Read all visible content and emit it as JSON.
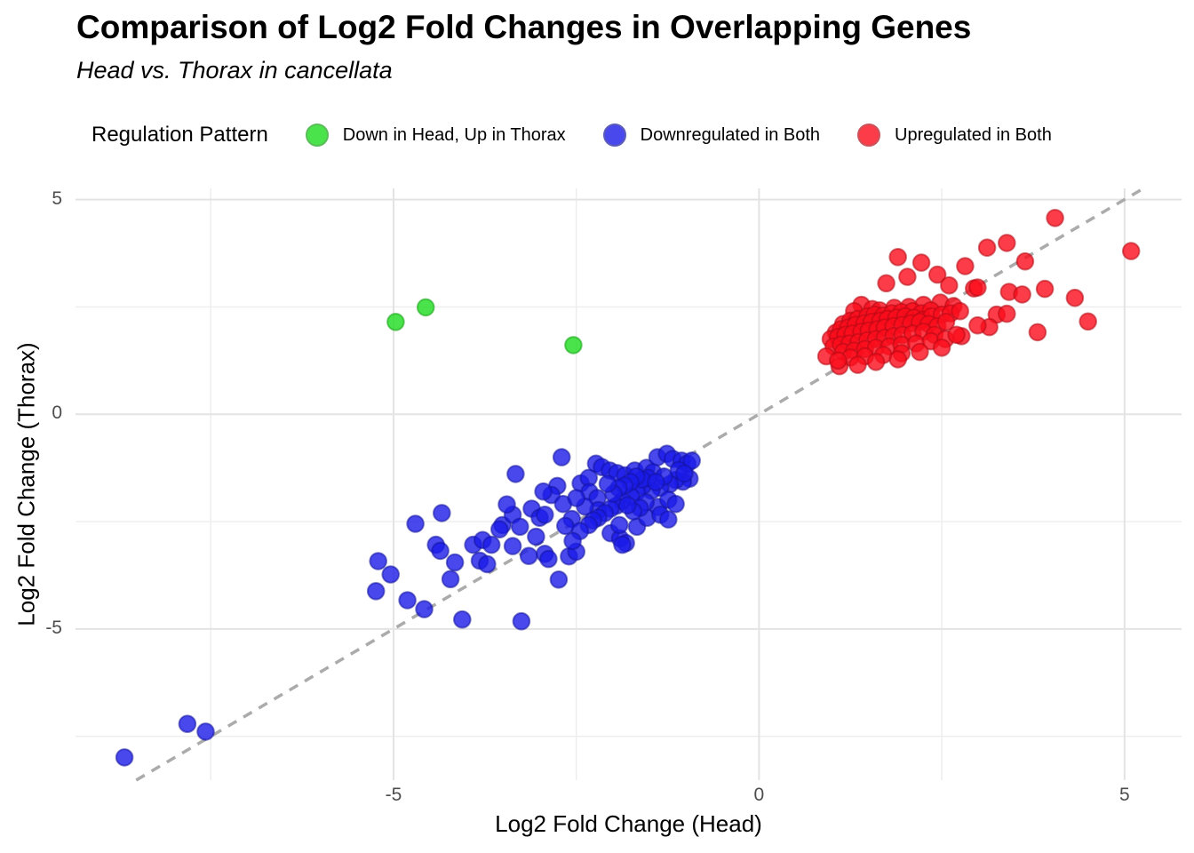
{
  "chart_data": {
    "type": "scatter",
    "title": "Comparison of Log2 Fold Changes in Overlapping Genes",
    "subtitle": "Head vs. Thorax in cancellata",
    "xlabel": "Log2 Fold Change (Head)",
    "ylabel": "Log2 Fold Change (Thorax)",
    "xlim": [
      -9.35,
      5.78
    ],
    "ylim": [
      -8.52,
      5.26
    ],
    "x_ticks": {
      "major": [
        -5,
        0,
        5
      ],
      "labels": [
        "-5",
        "0",
        "5"
      ],
      "minor": [
        -7.5,
        -2.5,
        2.5
      ]
    },
    "y_ticks": {
      "major": [
        -5,
        0,
        5
      ],
      "labels": [
        "-5",
        "0",
        "5"
      ],
      "minor": [
        -7.5,
        -2.5,
        2.5
      ]
    },
    "grid": true,
    "legend_title": "Regulation Pattern",
    "legend_position": "top",
    "reference_line": {
      "type": "abline",
      "slope": 1,
      "intercept": 0,
      "style": "dashed",
      "color": "#ABABAB",
      "width": 3.5
    },
    "series": [
      {
        "name": "Down in Head, Up in Thorax",
        "color": "#1EDC1E",
        "stroke": "#13A013",
        "points": [
          [
            -4.97,
            2.15
          ],
          [
            -4.56,
            2.49
          ],
          [
            -2.54,
            1.61
          ]
        ]
      },
      {
        "name": "Downregulated in Both",
        "color": "#1A1AE8",
        "stroke": "#14149C",
        "points": [
          [
            -8.68,
            -7.99
          ],
          [
            -7.82,
            -7.21
          ],
          [
            -7.57,
            -7.39
          ],
          [
            -5.21,
            -3.42
          ],
          [
            -5.04,
            -3.73
          ],
          [
            -5.24,
            -4.12
          ],
          [
            -4.81,
            -4.33
          ],
          [
            -4.58,
            -4.54
          ],
          [
            -4.7,
            -2.55
          ],
          [
            -4.34,
            -2.3
          ],
          [
            -4.42,
            -3.04
          ],
          [
            -4.36,
            -3.18
          ],
          [
            -4.16,
            -3.45
          ],
          [
            -4.22,
            -3.84
          ],
          [
            -4.06,
            -4.78
          ],
          [
            -3.91,
            -3.04
          ],
          [
            -3.78,
            -2.93
          ],
          [
            -3.66,
            -3.04
          ],
          [
            -3.82,
            -3.41
          ],
          [
            -3.72,
            -3.49
          ],
          [
            -3.51,
            -2.58
          ],
          [
            -3.55,
            -2.68
          ],
          [
            -3.33,
            -1.39
          ],
          [
            -3.37,
            -2.34
          ],
          [
            -3.27,
            -2.62
          ],
          [
            -3.37,
            -3.07
          ],
          [
            -3.25,
            -4.82
          ],
          [
            -3.11,
            -2.2
          ],
          [
            -3.0,
            -2.41
          ],
          [
            -2.93,
            -2.34
          ],
          [
            -2.7,
            -1.0
          ],
          [
            -2.76,
            -1.67
          ],
          [
            -2.84,
            -1.88
          ],
          [
            -2.68,
            -2.09
          ],
          [
            -2.56,
            -2.44
          ],
          [
            -2.44,
            -1.61
          ],
          [
            -2.33,
            -1.48
          ],
          [
            -2.32,
            -1.81
          ],
          [
            -2.21,
            -1.95
          ],
          [
            -2.2,
            -2.23
          ],
          [
            -2.93,
            -3.25
          ],
          [
            -2.88,
            -3.37
          ],
          [
            -2.74,
            -3.85
          ],
          [
            -2.6,
            -3.31
          ],
          [
            -2.5,
            -3.2
          ],
          [
            -3.05,
            -2.85
          ],
          [
            -3.15,
            -3.3
          ],
          [
            -2.95,
            -1.8
          ],
          [
            -3.45,
            -2.1
          ],
          [
            -2.23,
            -1.15
          ],
          [
            -2.15,
            -1.23
          ],
          [
            -2.04,
            -1.31
          ],
          [
            -1.94,
            -1.37
          ],
          [
            -1.83,
            -1.42
          ],
          [
            -1.7,
            -1.31
          ],
          [
            -1.54,
            -1.25
          ],
          [
            -1.39,
            -1.0
          ],
          [
            -1.26,
            -0.92
          ],
          [
            -1.18,
            -1.04
          ],
          [
            -1.06,
            -1.08
          ],
          [
            -0.98,
            -1.15
          ],
          [
            -0.92,
            -1.08
          ],
          [
            -0.95,
            -1.5
          ],
          [
            -1.04,
            -1.57
          ],
          [
            -1.14,
            -1.53
          ],
          [
            -1.22,
            -1.63
          ],
          [
            -1.35,
            -1.71
          ],
          [
            -1.47,
            -1.78
          ],
          [
            -1.59,
            -1.67
          ],
          [
            -1.67,
            -1.81
          ],
          [
            -1.75,
            -1.92
          ],
          [
            -1.87,
            -2.02
          ],
          [
            -1.95,
            -2.13
          ],
          [
            -2.03,
            -2.2
          ],
          [
            -2.11,
            -2.3
          ],
          [
            -2.2,
            -2.41
          ],
          [
            -2.27,
            -2.47
          ],
          [
            -2.33,
            -2.58
          ],
          [
            -2.03,
            -2.77
          ],
          [
            -1.9,
            -2.89
          ],
          [
            -1.82,
            -3.0
          ],
          [
            -1.67,
            -2.62
          ],
          [
            -1.53,
            -2.41
          ],
          [
            -1.38,
            -2.16
          ],
          [
            -1.24,
            -1.99
          ],
          [
            -1.35,
            -2.34
          ],
          [
            -1.24,
            -2.45
          ],
          [
            -1.14,
            -2.09
          ],
          [
            -1.87,
            -3.04
          ],
          [
            -1.45,
            -1.35
          ],
          [
            -1.52,
            -1.48
          ],
          [
            -1.6,
            -1.52
          ],
          [
            -1.68,
            -1.45
          ],
          [
            -1.76,
            -1.58
          ],
          [
            -1.84,
            -1.66
          ],
          [
            -1.92,
            -1.72
          ],
          [
            -1.99,
            -1.85
          ],
          [
            -2.07,
            -1.62
          ],
          [
            -1.3,
            -1.45
          ],
          [
            -1.41,
            -1.58
          ],
          [
            -1.1,
            -1.3
          ],
          [
            -1.02,
            -1.38
          ],
          [
            -1.55,
            -2.05
          ],
          [
            -1.63,
            -2.18
          ],
          [
            -1.72,
            -2.26
          ],
          [
            -1.8,
            -2.12
          ],
          [
            -1.91,
            -2.58
          ],
          [
            -2.45,
            -2.72
          ],
          [
            -2.55,
            -2.95
          ],
          [
            -2.65,
            -2.6
          ],
          [
            -2.38,
            -2.15
          ],
          [
            -2.5,
            -1.95
          ]
        ]
      },
      {
        "name": "Upregulated in Both",
        "color": "#FB0D1B",
        "stroke": "#B20914",
        "points": [
          [
            4.05,
            4.57
          ],
          [
            5.09,
            3.8
          ],
          [
            3.39,
            3.99
          ],
          [
            3.12,
            3.88
          ],
          [
            1.9,
            3.66
          ],
          [
            2.22,
            3.53
          ],
          [
            2.82,
            3.45
          ],
          [
            3.64,
            3.56
          ],
          [
            2.03,
            3.2
          ],
          [
            2.44,
            3.25
          ],
          [
            1.74,
            3.05
          ],
          [
            2.6,
            3.0
          ],
          [
            2.94,
            2.93
          ],
          [
            3.42,
            2.85
          ],
          [
            3.6,
            2.79
          ],
          [
            3.91,
            2.92
          ],
          [
            4.32,
            2.71
          ],
          [
            4.5,
            2.16
          ],
          [
            3.81,
            1.91
          ],
          [
            3.25,
            2.32
          ],
          [
            3.39,
            2.34
          ],
          [
            3.15,
            2.03
          ],
          [
            2.99,
            2.07
          ],
          [
            2.77,
            1.82
          ],
          [
            2.99,
            2.95
          ],
          [
            1.4,
            2.55
          ],
          [
            1.3,
            2.4
          ],
          [
            1.55,
            2.45
          ],
          [
            1.65,
            2.42
          ],
          [
            1.85,
            2.48
          ],
          [
            2.05,
            2.5
          ],
          [
            2.25,
            2.55
          ],
          [
            2.48,
            2.6
          ],
          [
            2.66,
            2.52
          ],
          [
            1.15,
            2.1
          ],
          [
            1.25,
            2.18
          ],
          [
            1.35,
            2.22
          ],
          [
            1.48,
            2.28
          ],
          [
            1.58,
            2.32
          ],
          [
            1.7,
            2.3
          ],
          [
            1.82,
            2.35
          ],
          [
            1.95,
            2.38
          ],
          [
            2.1,
            2.4
          ],
          [
            2.22,
            2.35
          ],
          [
            2.35,
            2.42
          ],
          [
            1.05,
            1.9
          ],
          [
            1.12,
            1.98
          ],
          [
            1.22,
            2.02
          ],
          [
            1.32,
            2.08
          ],
          [
            1.44,
            2.12
          ],
          [
            1.54,
            2.15
          ],
          [
            1.66,
            2.18
          ],
          [
            1.76,
            2.22
          ],
          [
            1.88,
            2.25
          ],
          [
            2.0,
            2.28
          ],
          [
            2.12,
            2.25
          ],
          [
            2.24,
            2.2
          ],
          [
            2.36,
            2.28
          ],
          [
            2.5,
            2.32
          ],
          [
            2.62,
            2.35
          ],
          [
            2.75,
            2.4
          ],
          [
            0.98,
            1.75
          ],
          [
            1.08,
            1.8
          ],
          [
            1.18,
            1.85
          ],
          [
            1.28,
            1.88
          ],
          [
            1.4,
            1.92
          ],
          [
            1.5,
            1.95
          ],
          [
            1.62,
            1.98
          ],
          [
            1.72,
            2.02
          ],
          [
            1.84,
            2.05
          ],
          [
            1.96,
            2.08
          ],
          [
            2.08,
            2.12
          ],
          [
            2.2,
            2.15
          ],
          [
            2.32,
            2.1
          ],
          [
            2.44,
            2.05
          ],
          [
            2.56,
            2.15
          ],
          [
            1.02,
            1.58
          ],
          [
            1.12,
            1.62
          ],
          [
            1.24,
            1.65
          ],
          [
            1.36,
            1.68
          ],
          [
            1.48,
            1.72
          ],
          [
            1.6,
            1.75
          ],
          [
            1.72,
            1.78
          ],
          [
            1.84,
            1.82
          ],
          [
            1.96,
            1.85
          ],
          [
            2.1,
            1.88
          ],
          [
            2.25,
            1.92
          ],
          [
            2.4,
            1.85
          ],
          [
            1.15,
            1.45
          ],
          [
            1.3,
            1.48
          ],
          [
            1.45,
            1.52
          ],
          [
            1.6,
            1.55
          ],
          [
            1.78,
            1.58
          ],
          [
            1.95,
            1.62
          ],
          [
            2.15,
            1.65
          ],
          [
            2.35,
            1.7
          ],
          [
            2.55,
            1.75
          ],
          [
            2.7,
            1.85
          ],
          [
            1.25,
            1.32
          ],
          [
            1.45,
            1.35
          ],
          [
            1.7,
            1.38
          ],
          [
            1.95,
            1.42
          ],
          [
            2.2,
            1.45
          ],
          [
            2.5,
            1.55
          ],
          [
            1.6,
            1.22
          ],
          [
            1.9,
            1.28
          ],
          [
            0.92,
            1.35
          ],
          [
            1.1,
            1.12
          ],
          [
            1.35,
            1.15
          ],
          [
            1.08,
            1.25
          ]
        ]
      }
    ]
  },
  "colors": {
    "background": "#FFFFFF",
    "grid_major": "#E3E3E3",
    "grid_minor": "#EDEDED",
    "tick_label": "#4D4D4D",
    "text": "#000000"
  }
}
